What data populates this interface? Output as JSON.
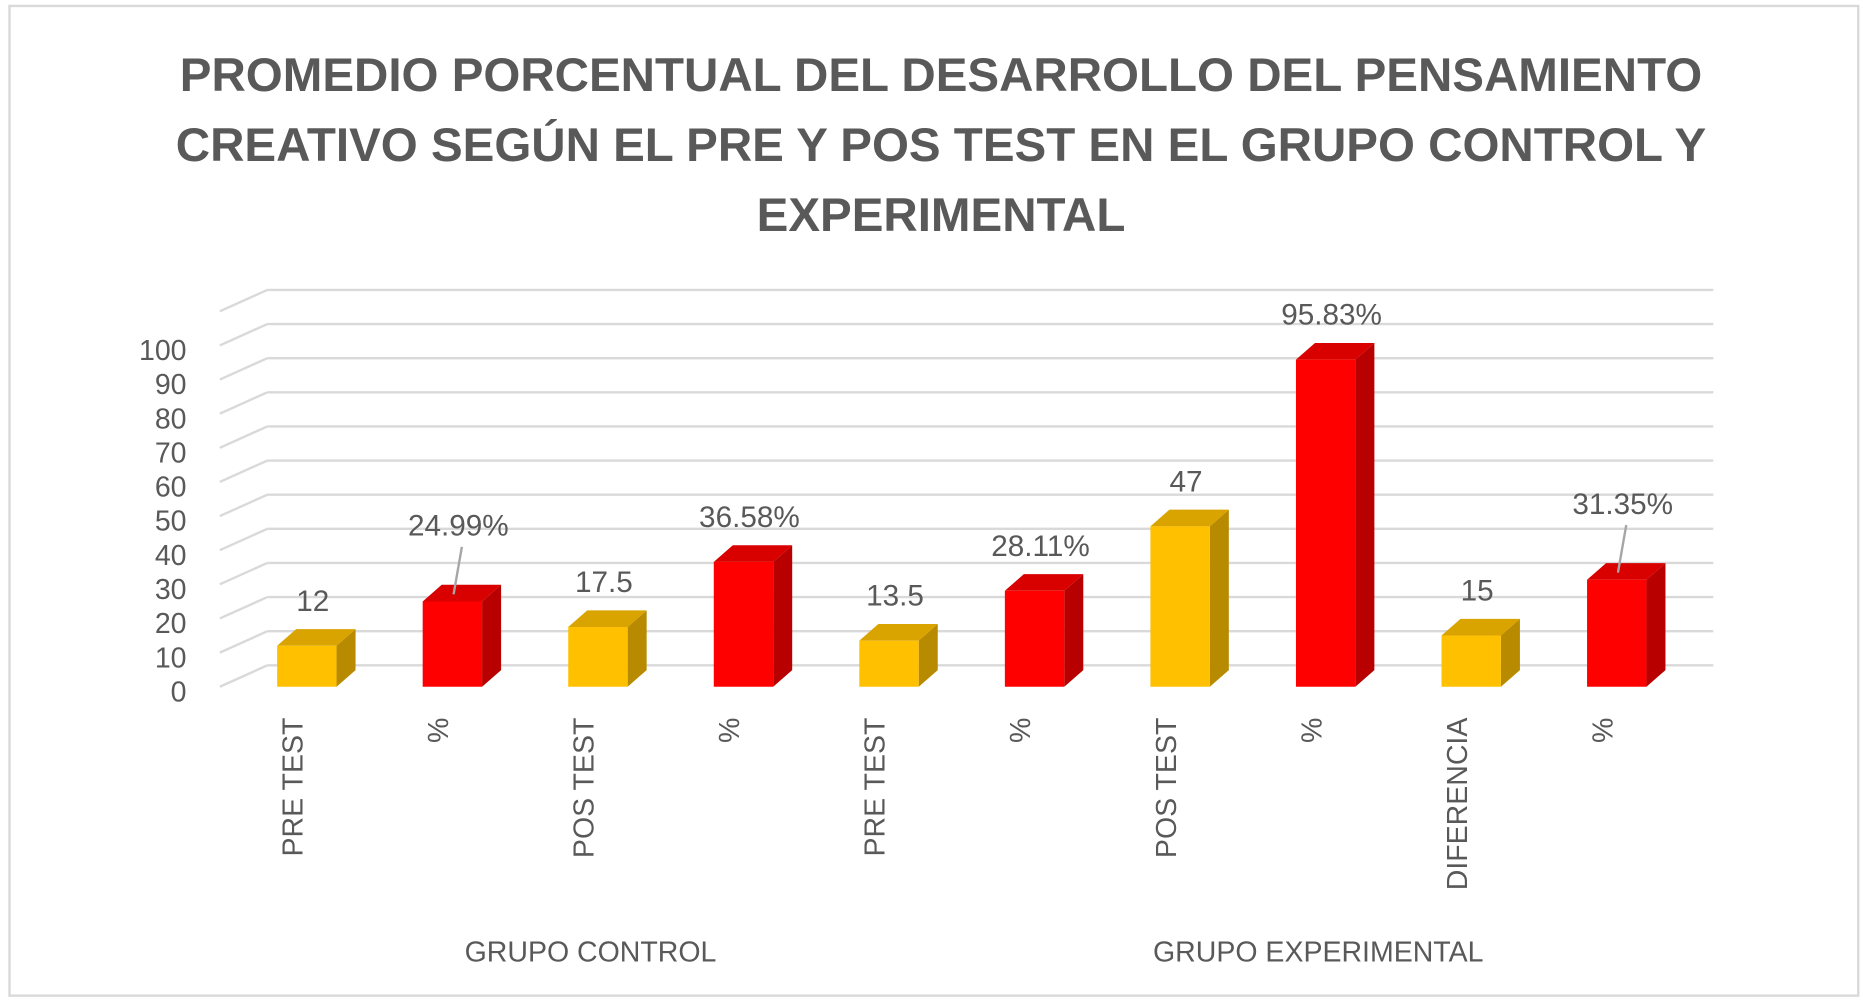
{
  "chart_data": {
    "type": "bar3d",
    "title": [
      "PROMEDIO PORCENTUAL DEL DESARROLLO DEL PENSAMIENTO",
      "CREATIVO SEGÚN EL PRE Y POS TEST EN EL GRUPO CONTROL Y",
      "EXPERIMENTAL"
    ],
    "categories": [
      "PRE TEST",
      "%",
      "POS TEST",
      "%",
      "PRE TEST",
      "%",
      "POS TEST",
      "%",
      "DIFERENCIA",
      "%"
    ],
    "values": [
      12,
      24.99,
      17.5,
      36.58,
      13.5,
      28.11,
      47,
      95.83,
      15,
      31.35
    ],
    "value_labels": [
      "12",
      "24.99%",
      "17.5",
      "36.58%",
      "13.5",
      "28.11%",
      "47",
      "95.83%",
      "15",
      "31.35%"
    ],
    "colors": [
      "#FFC000",
      "#FF0000",
      "#FFC000",
      "#FF0000",
      "#FFC000",
      "#FF0000",
      "#FFC000",
      "#FF0000",
      "#FFC000",
      "#FF0000"
    ],
    "groups": [
      {
        "label": "GRUPO CONTROL",
        "span": 4
      },
      {
        "label": "GRUPO EXPERIMENTAL",
        "span": 6
      }
    ],
    "ylim": [
      0,
      110
    ],
    "yticks": [
      0,
      10,
      20,
      30,
      40,
      50,
      60,
      70,
      80,
      90,
      100
    ],
    "grid": true
  }
}
